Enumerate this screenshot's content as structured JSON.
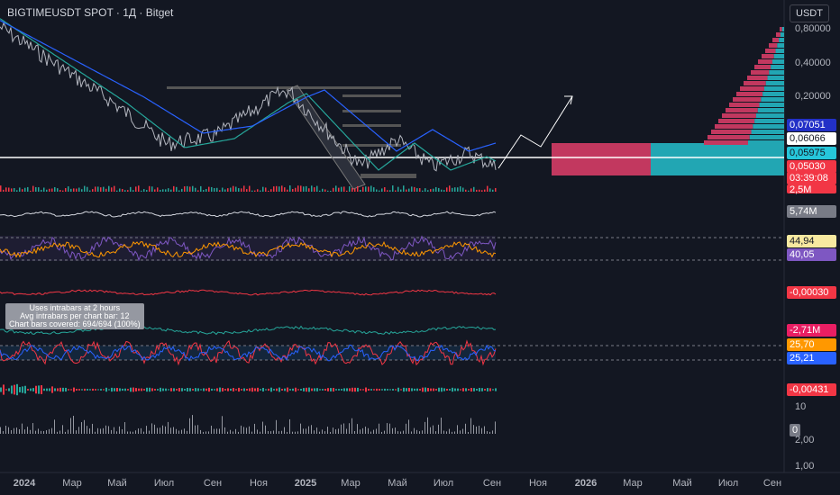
{
  "header": {
    "title": "BIGTIMEUSDT SPOT · 1Д · Bitget",
    "currency": "USDT"
  },
  "price_axis": [
    "0,80000",
    "0,40000",
    "0,20000"
  ],
  "price_tags": [
    "0,07051",
    "0,06066",
    "0,05975",
    "0,05030",
    "03:39:08",
    "2,5M"
  ],
  "indicator_tags": [
    "5,74M",
    "44,94",
    "40,05",
    "-0,00030",
    "-2,71M",
    "25,70",
    "25,21",
    "-0,00431",
    "10",
    "0",
    "2,00",
    "1,00"
  ],
  "tooltip": [
    "Uses intrabars at 2 hours",
    "Avg intrabars per chart bar: 12",
    "Chart bars covered: 694/694 (100%)"
  ],
  "time_axis": [
    "2024",
    "Мар",
    "Май",
    "Июл",
    "Сен",
    "Ноя",
    "2025",
    "Мар",
    "Май",
    "Июл",
    "Сен",
    "Ноя",
    "2026",
    "Мар",
    "Май",
    "Июл",
    "Сен"
  ]
}
